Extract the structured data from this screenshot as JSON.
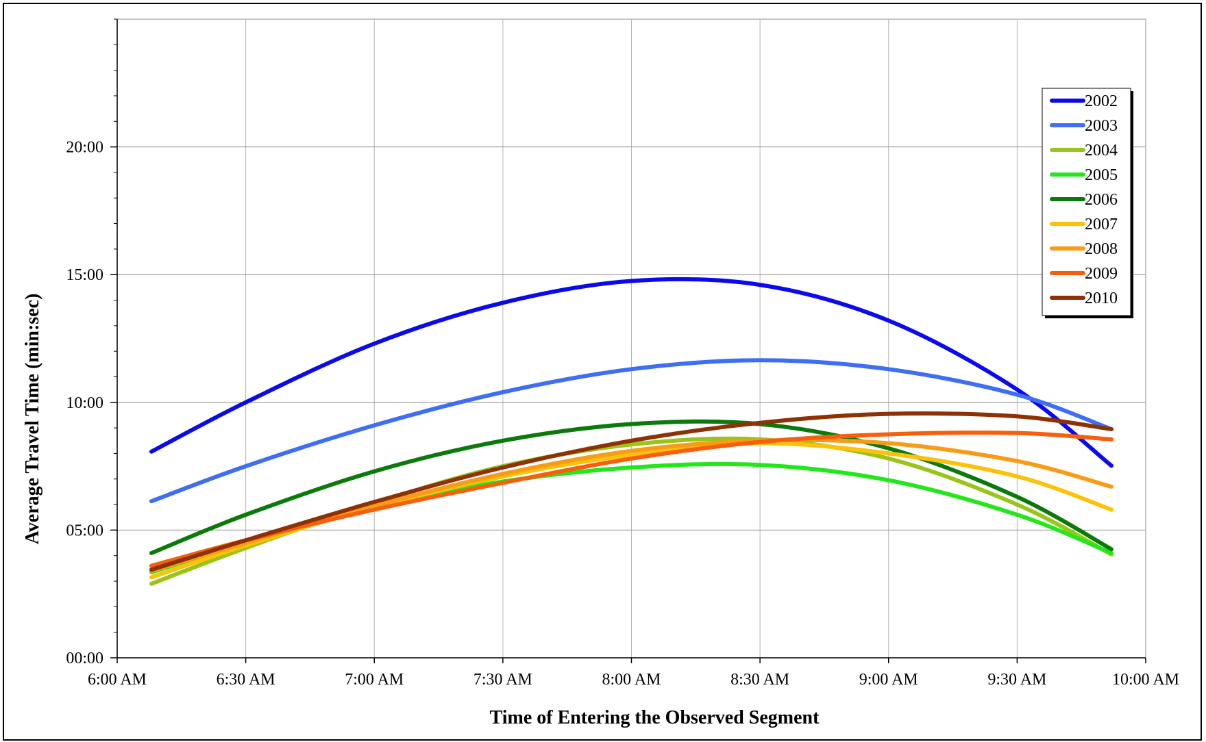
{
  "chart_data": {
    "type": "line",
    "title": "",
    "xlabel": "Time of Entering the Observed Segment",
    "ylabel": "Average Travel Time (min:sec)",
    "x_unit": "minutes since 6:00 AM",
    "xlim": [
      0,
      240
    ],
    "ylim": [
      0,
      25
    ],
    "x_ticks": [
      {
        "value": 0,
        "label": "6:00 AM"
      },
      {
        "value": 30,
        "label": "6:30 AM"
      },
      {
        "value": 60,
        "label": "7:00 AM"
      },
      {
        "value": 90,
        "label": "7:30 AM"
      },
      {
        "value": 120,
        "label": "8:00 AM"
      },
      {
        "value": 150,
        "label": "8:30 AM"
      },
      {
        "value": 180,
        "label": "9:00 AM"
      },
      {
        "value": 210,
        "label": "9:30 AM"
      },
      {
        "value": 240,
        "label": "10:00 AM"
      }
    ],
    "y_ticks": [
      {
        "value": 0,
        "label": "00:00"
      },
      {
        "value": 5,
        "label": "05:00"
      },
      {
        "value": 10,
        "label": "10:00"
      },
      {
        "value": 15,
        "label": "15:00"
      },
      {
        "value": 20,
        "label": "20:00"
      }
    ],
    "y_minor_step": 1,
    "grid": true,
    "legend_position": "top-right",
    "x": [
      8,
      30,
      60,
      90,
      120,
      150,
      180,
      210,
      232
    ],
    "series": [
      {
        "name": "2002",
        "color": "#0a0aee",
        "values": [
          8.07,
          10.0,
          12.3,
          13.9,
          14.75,
          14.6,
          13.2,
          10.5,
          7.52
        ]
      },
      {
        "name": "2003",
        "color": "#3d6ef5",
        "values": [
          6.13,
          7.5,
          9.1,
          10.4,
          11.3,
          11.65,
          11.3,
          10.3,
          8.95
        ]
      },
      {
        "name": "2004",
        "color": "#9bc41a",
        "values": [
          2.9,
          4.3,
          6.05,
          7.5,
          8.35,
          8.55,
          7.8,
          6.0,
          4.05
        ]
      },
      {
        "name": "2005",
        "color": "#22e81a",
        "values": [
          3.35,
          4.5,
          5.95,
          6.9,
          7.45,
          7.55,
          6.95,
          5.6,
          4.1
        ]
      },
      {
        "name": "2006",
        "color": "#0b7a0b",
        "values": [
          4.1,
          5.6,
          7.3,
          8.5,
          9.15,
          9.15,
          8.2,
          6.3,
          4.25
        ]
      },
      {
        "name": "2007",
        "color": "#fcc209",
        "values": [
          3.15,
          4.4,
          5.9,
          7.1,
          7.95,
          8.4,
          8.0,
          7.1,
          5.8
        ]
      },
      {
        "name": "2008",
        "color": "#f89b17",
        "values": [
          3.4,
          4.5,
          5.95,
          7.2,
          8.1,
          8.5,
          8.4,
          7.7,
          6.7
        ]
      },
      {
        "name": "2009",
        "color": "#f65f0e",
        "values": [
          3.6,
          4.6,
          5.8,
          6.85,
          7.8,
          8.45,
          8.75,
          8.8,
          8.55
        ]
      },
      {
        "name": "2010",
        "color": "#8e3104",
        "values": [
          3.45,
          4.6,
          6.1,
          7.45,
          8.5,
          9.2,
          9.55,
          9.45,
          8.95
        ]
      }
    ]
  }
}
